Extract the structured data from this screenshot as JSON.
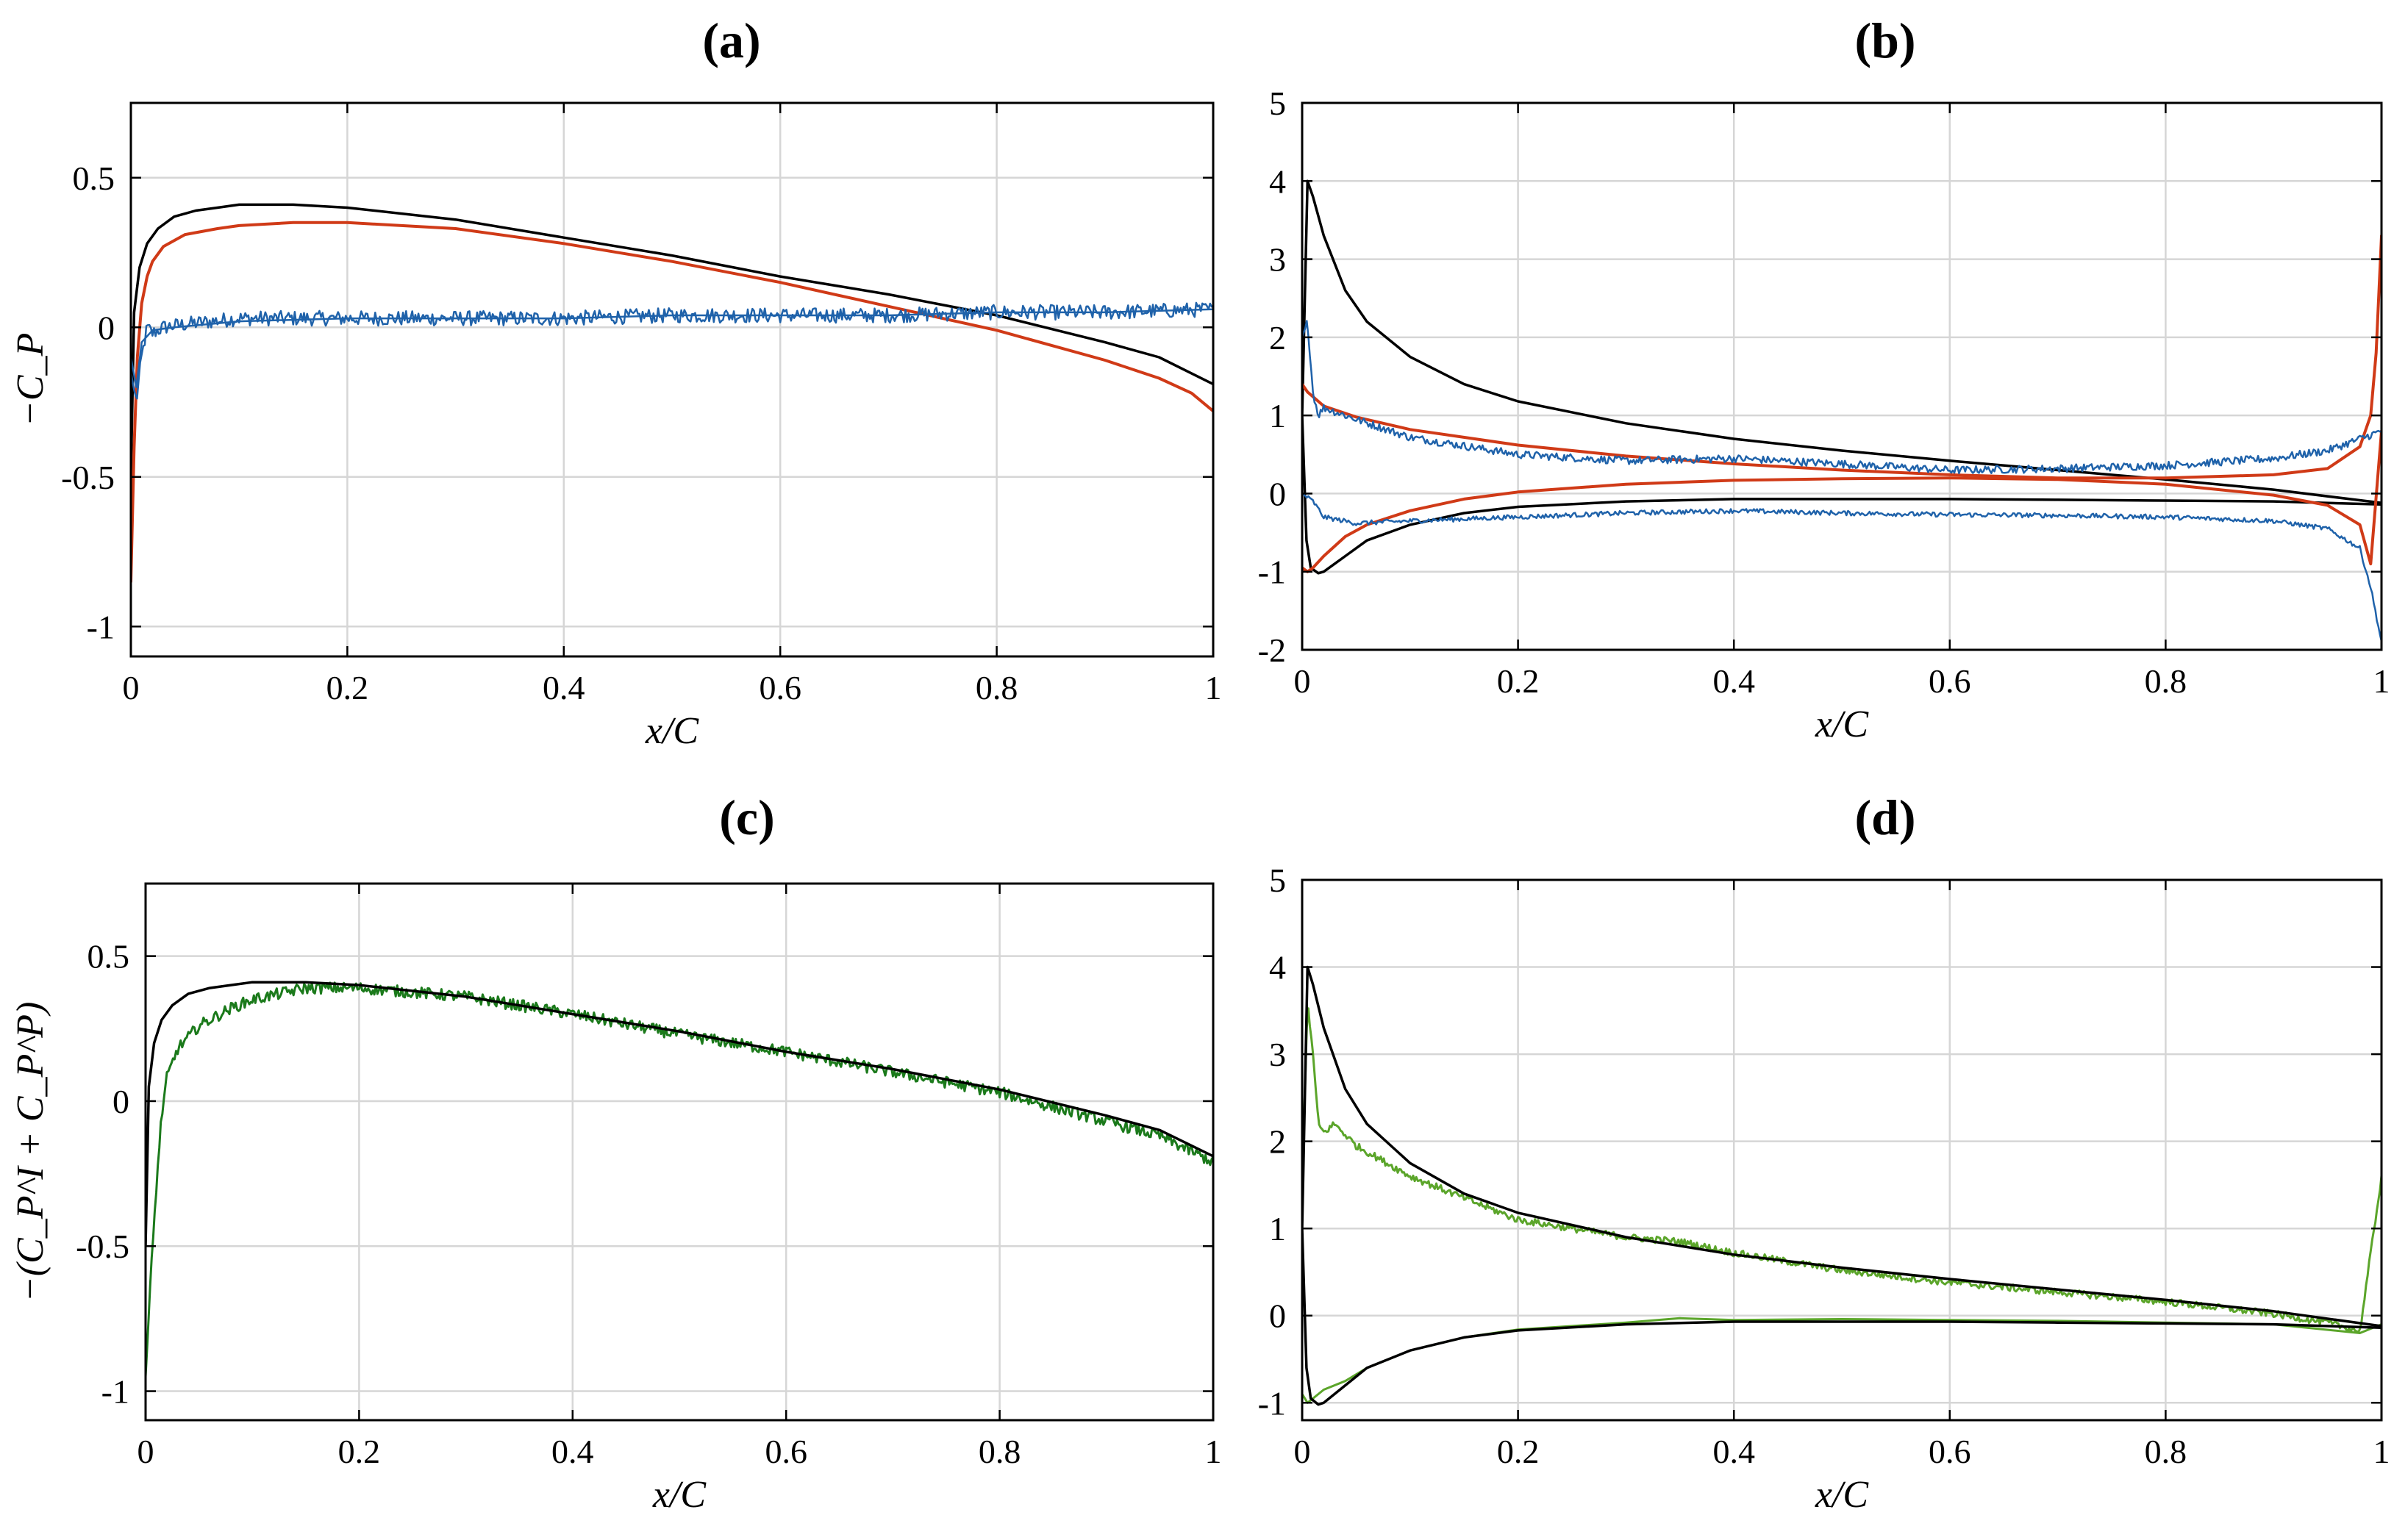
{
  "chart_data": [
    {
      "type": "line",
      "title": "(a)",
      "xlabel": "x/C",
      "ylabel": "−C_P",
      "xlim": [
        0,
        1
      ],
      "ylim": [
        -1.1,
        0.75
      ],
      "xticks": [
        0,
        0.2,
        0.4,
        0.6,
        0.8,
        1
      ],
      "xtick_labels": [
        "0",
        "0.2",
        "0.4",
        "0.6",
        "0.8",
        "1"
      ],
      "yticks": [
        -1,
        -0.5,
        0,
        0.5
      ],
      "ytick_labels": [
        "-1",
        "-0.5",
        "0",
        "0.5"
      ],
      "grid": true,
      "series": [
        {
          "name": "black",
          "color": "#000000",
          "width": 3.5,
          "x": [
            0,
            0.003,
            0.008,
            0.015,
            0.025,
            0.04,
            0.06,
            0.08,
            0.1,
            0.12,
            0.15,
            0.2,
            0.3,
            0.4,
            0.5,
            0.6,
            0.7,
            0.8,
            0.9,
            0.95,
            1.0
          ],
          "y": [
            -0.5,
            0.05,
            0.2,
            0.28,
            0.33,
            0.37,
            0.39,
            0.4,
            0.41,
            0.41,
            0.41,
            0.4,
            0.36,
            0.3,
            0.24,
            0.17,
            0.11,
            0.04,
            -0.05,
            -0.1,
            -0.19
          ]
        },
        {
          "name": "red",
          "color": "#d03a17",
          "width": 4,
          "x": [
            0,
            0.003,
            0.006,
            0.01,
            0.015,
            0.02,
            0.03,
            0.05,
            0.08,
            0.1,
            0.15,
            0.2,
            0.3,
            0.4,
            0.5,
            0.6,
            0.7,
            0.8,
            0.9,
            0.95,
            0.98,
            1.0
          ],
          "y": [
            -0.85,
            -0.4,
            -0.1,
            0.08,
            0.17,
            0.22,
            0.27,
            0.31,
            0.33,
            0.34,
            0.35,
            0.35,
            0.33,
            0.28,
            0.22,
            0.15,
            0.07,
            -0.01,
            -0.11,
            -0.17,
            -0.22,
            -0.28
          ]
        },
        {
          "name": "blue",
          "color": "#1f62aa",
          "width": 2.5,
          "noise": 0.025,
          "x": [
            0,
            0.005,
            0.01,
            0.015,
            0.02,
            0.03,
            0.05,
            0.1,
            0.2,
            0.3,
            0.4,
            0.5,
            0.6,
            0.7,
            0.8,
            0.9,
            1.0
          ],
          "y": [
            -0.15,
            -0.25,
            -0.1,
            0.0,
            -0.02,
            0.0,
            0.01,
            0.03,
            0.03,
            0.03,
            0.03,
            0.04,
            0.04,
            0.04,
            0.05,
            0.05,
            0.06
          ]
        },
        {
          "name": "blue-smooth",
          "color": "#1f62aa",
          "width": 2.5,
          "x": [
            0,
            0.005,
            0.01,
            0.02,
            0.04,
            0.1,
            0.2,
            0.3,
            0.4,
            0.5,
            0.6,
            0.7,
            0.8,
            0.9,
            1.0
          ],
          "y": [
            -0.1,
            -0.2,
            -0.05,
            -0.01,
            0.0,
            0.02,
            0.03,
            0.03,
            0.03,
            0.04,
            0.04,
            0.04,
            0.05,
            0.05,
            0.06
          ]
        }
      ]
    },
    {
      "type": "line",
      "title": "(b)",
      "xlabel": "x/C",
      "ylabel": "",
      "xlim": [
        0,
        1
      ],
      "ylim": [
        -2,
        5
      ],
      "xticks": [
        0,
        0.2,
        0.4,
        0.6,
        0.8,
        1
      ],
      "xtick_labels": [
        "0",
        "0.2",
        "0.4",
        "0.6",
        "0.8",
        "1"
      ],
      "yticks": [
        -2,
        -1,
        0,
        1,
        2,
        3,
        4,
        5
      ],
      "ytick_labels": [
        "-2",
        "-1",
        "0",
        "1",
        "2",
        "3",
        "4",
        "5"
      ],
      "grid": true,
      "series": [
        {
          "name": "black-upper",
          "color": "#000000",
          "width": 3.5,
          "x": [
            0,
            0.005,
            0.01,
            0.02,
            0.04,
            0.06,
            0.1,
            0.15,
            0.2,
            0.3,
            0.4,
            0.5,
            0.6,
            0.7,
            0.8,
            0.9,
            1.0
          ],
          "y": [
            1.0,
            4.0,
            3.8,
            3.3,
            2.6,
            2.2,
            1.75,
            1.4,
            1.18,
            0.9,
            0.7,
            0.55,
            0.42,
            0.3,
            0.18,
            0.05,
            -0.12
          ]
        },
        {
          "name": "black-lower",
          "color": "#000000",
          "width": 3.5,
          "x": [
            0,
            0.004,
            0.008,
            0.015,
            0.02,
            0.04,
            0.06,
            0.1,
            0.15,
            0.2,
            0.3,
            0.4,
            0.5,
            0.6,
            0.7,
            0.8,
            0.9,
            1.0
          ],
          "y": [
            1.0,
            -0.6,
            -0.95,
            -1.02,
            -1.0,
            -0.8,
            -0.6,
            -0.4,
            -0.25,
            -0.17,
            -0.1,
            -0.07,
            -0.07,
            -0.07,
            -0.08,
            -0.09,
            -0.1,
            -0.14
          ]
        },
        {
          "name": "red-upper",
          "color": "#d03a17",
          "width": 4,
          "x": [
            0,
            0.005,
            0.02,
            0.05,
            0.1,
            0.2,
            0.3,
            0.4,
            0.5,
            0.6,
            0.7,
            0.8,
            0.9,
            0.95,
            0.98,
            0.99,
            0.995,
            1.0
          ],
          "y": [
            1.4,
            1.3,
            1.12,
            0.98,
            0.82,
            0.62,
            0.48,
            0.38,
            0.3,
            0.24,
            0.2,
            0.2,
            0.24,
            0.32,
            0.6,
            1.0,
            1.8,
            3.3
          ]
        },
        {
          "name": "red-lower",
          "color": "#d03a17",
          "width": 4,
          "x": [
            0,
            0.005,
            0.01,
            0.02,
            0.04,
            0.06,
            0.1,
            0.15,
            0.2,
            0.3,
            0.4,
            0.5,
            0.6,
            0.7,
            0.8,
            0.9,
            0.95,
            0.98,
            0.99,
            1.0
          ],
          "y": [
            -0.95,
            -1.0,
            -0.95,
            -0.8,
            -0.55,
            -0.4,
            -0.22,
            -0.07,
            0.02,
            0.12,
            0.17,
            0.19,
            0.2,
            0.18,
            0.12,
            -0.02,
            -0.15,
            -0.4,
            -0.9,
            0.8
          ]
        },
        {
          "name": "blue-upper",
          "color": "#1f62aa",
          "width": 2.5,
          "noise": 0.05,
          "x": [
            0,
            0.005,
            0.01,
            0.015,
            0.02,
            0.05,
            0.1,
            0.2,
            0.3,
            0.4,
            0.5,
            0.6,
            0.7,
            0.8,
            0.9,
            0.95,
            0.99,
            1.0
          ],
          "y": [
            2.0,
            2.2,
            1.3,
            1.0,
            1.1,
            0.95,
            0.72,
            0.5,
            0.42,
            0.45,
            0.38,
            0.3,
            0.32,
            0.36,
            0.45,
            0.55,
            0.75,
            0.8
          ]
        },
        {
          "name": "blue-lower",
          "color": "#1f62aa",
          "width": 2.5,
          "noise": 0.03,
          "x": [
            0,
            0.005,
            0.01,
            0.02,
            0.05,
            0.1,
            0.2,
            0.3,
            0.4,
            0.5,
            0.6,
            0.7,
            0.8,
            0.9,
            0.95,
            0.98,
            0.99,
            1.0
          ],
          "y": [
            0.0,
            -0.05,
            -0.1,
            -0.3,
            -0.38,
            -0.35,
            -0.3,
            -0.25,
            -0.22,
            -0.25,
            -0.27,
            -0.28,
            -0.3,
            -0.35,
            -0.45,
            -0.7,
            -1.2,
            -1.9
          ]
        }
      ]
    },
    {
      "type": "line",
      "title": "(c)",
      "xlabel": "x/C",
      "ylabel": "−(C_P^I + C_P^P)",
      "xlim": [
        0,
        1
      ],
      "ylim": [
        -1.1,
        0.75
      ],
      "xticks": [
        0,
        0.2,
        0.4,
        0.6,
        0.8,
        1
      ],
      "xtick_labels": [
        "0",
        "0.2",
        "0.4",
        "0.6",
        "0.8",
        "1"
      ],
      "yticks": [
        -1,
        -0.5,
        0,
        0.5
      ],
      "ytick_labels": [
        "-1",
        "-0.5",
        "0",
        "0.5"
      ],
      "grid": true,
      "series": [
        {
          "name": "green",
          "color": "#1b7a1b",
          "width": 3,
          "noise": 0.02,
          "x": [
            0,
            0.005,
            0.01,
            0.015,
            0.02,
            0.03,
            0.05,
            0.08,
            0.1,
            0.15,
            0.2,
            0.3,
            0.4,
            0.5,
            0.6,
            0.7,
            0.8,
            0.9,
            0.95,
            1.0
          ],
          "y": [
            -0.95,
            -0.6,
            -0.3,
            -0.05,
            0.08,
            0.18,
            0.26,
            0.32,
            0.35,
            0.39,
            0.39,
            0.36,
            0.3,
            0.23,
            0.17,
            0.1,
            0.03,
            -0.07,
            -0.12,
            -0.21
          ]
        },
        {
          "name": "black",
          "color": "#000000",
          "width": 3.5,
          "x": [
            0,
            0.003,
            0.008,
            0.015,
            0.025,
            0.04,
            0.06,
            0.08,
            0.1,
            0.12,
            0.15,
            0.2,
            0.3,
            0.4,
            0.5,
            0.6,
            0.7,
            0.8,
            0.9,
            0.95,
            1.0
          ],
          "y": [
            -0.5,
            0.05,
            0.2,
            0.28,
            0.33,
            0.37,
            0.39,
            0.4,
            0.41,
            0.41,
            0.41,
            0.4,
            0.36,
            0.3,
            0.24,
            0.17,
            0.11,
            0.04,
            -0.05,
            -0.1,
            -0.19
          ]
        }
      ]
    },
    {
      "type": "line",
      "title": "(d)",
      "xlabel": "x/C",
      "ylabel": "",
      "xlim": [
        0,
        1
      ],
      "ylim": [
        -1.2,
        5
      ],
      "xticks": [
        0,
        0.2,
        0.4,
        0.6,
        0.8,
        1
      ],
      "xtick_labels": [
        "0",
        "0.2",
        "0.4",
        "0.6",
        "0.8",
        "1"
      ],
      "yticks": [
        -1,
        0,
        1,
        2,
        3,
        4,
        5
      ],
      "ytick_labels": [
        "-1",
        "0",
        "1",
        "2",
        "3",
        "4",
        "5"
      ],
      "grid": true,
      "series": [
        {
          "name": "green-upper",
          "color": "#5ba52a",
          "width": 3,
          "noise": 0.04,
          "x": [
            0,
            0.005,
            0.01,
            0.015,
            0.02,
            0.03,
            0.05,
            0.1,
            0.15,
            0.2,
            0.3,
            0.35,
            0.4,
            0.5,
            0.6,
            0.7,
            0.8,
            0.9,
            0.95,
            0.98,
            1.0
          ],
          "y": [
            1.5,
            3.6,
            3.0,
            2.2,
            2.1,
            2.2,
            1.95,
            1.6,
            1.35,
            1.1,
            0.9,
            0.85,
            0.72,
            0.52,
            0.38,
            0.27,
            0.16,
            0.02,
            -0.08,
            -0.18,
            1.6
          ]
        },
        {
          "name": "green-lower",
          "color": "#5ba52a",
          "width": 3,
          "x": [
            0,
            0.005,
            0.01,
            0.02,
            0.04,
            0.06,
            0.1,
            0.15,
            0.2,
            0.3,
            0.35,
            0.4,
            0.5,
            0.6,
            0.7,
            0.8,
            0.9,
            0.98,
            1.0
          ],
          "y": [
            -0.9,
            -1.0,
            -0.95,
            -0.85,
            -0.75,
            -0.6,
            -0.4,
            -0.25,
            -0.16,
            -0.08,
            -0.03,
            -0.05,
            -0.04,
            -0.05,
            -0.06,
            -0.08,
            -0.1,
            -0.2,
            -0.1
          ]
        },
        {
          "name": "black-upper",
          "color": "#000000",
          "width": 3.5,
          "x": [
            0,
            0.005,
            0.01,
            0.02,
            0.04,
            0.06,
            0.1,
            0.15,
            0.2,
            0.3,
            0.4,
            0.5,
            0.6,
            0.7,
            0.8,
            0.9,
            1.0
          ],
          "y": [
            1.0,
            4.0,
            3.8,
            3.3,
            2.6,
            2.2,
            1.75,
            1.4,
            1.18,
            0.9,
            0.7,
            0.55,
            0.42,
            0.3,
            0.18,
            0.05,
            -0.12
          ]
        },
        {
          "name": "black-lower",
          "color": "#000000",
          "width": 3.5,
          "x": [
            0,
            0.004,
            0.008,
            0.015,
            0.02,
            0.04,
            0.06,
            0.1,
            0.15,
            0.2,
            0.3,
            0.4,
            0.5,
            0.6,
            0.7,
            0.8,
            0.9,
            1.0
          ],
          "y": [
            1.0,
            -0.6,
            -0.95,
            -1.02,
            -1.0,
            -0.8,
            -0.6,
            -0.4,
            -0.25,
            -0.17,
            -0.1,
            -0.07,
            -0.07,
            -0.07,
            -0.08,
            -0.09,
            -0.1,
            -0.14
          ]
        }
      ]
    }
  ]
}
